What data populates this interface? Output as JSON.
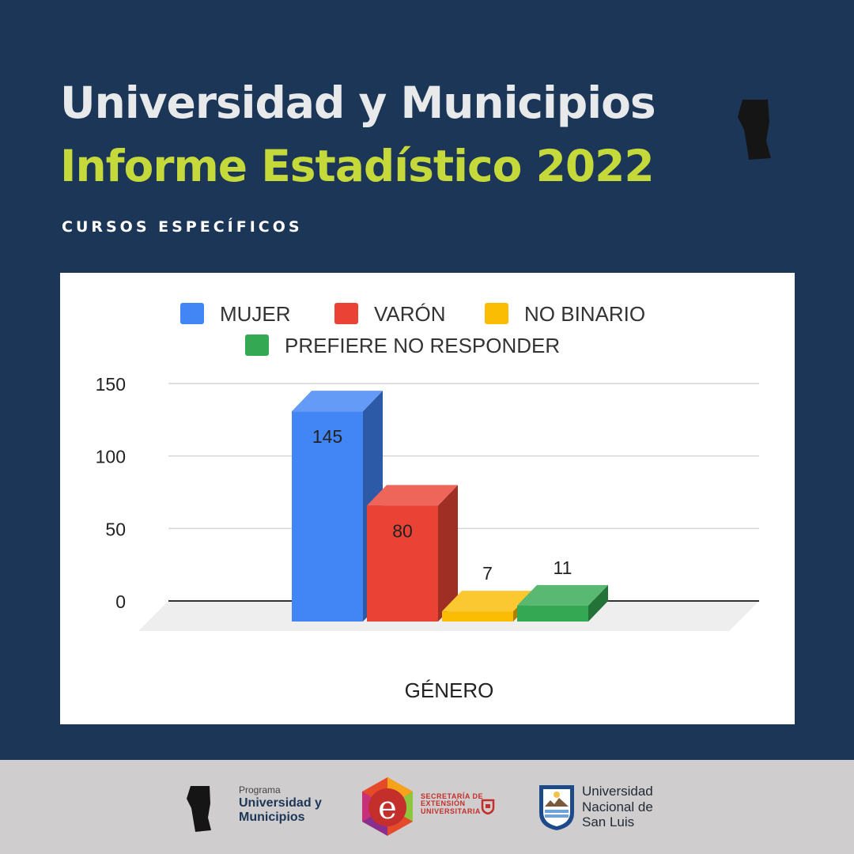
{
  "header": {
    "title": "Universidad y Municipios",
    "subtitle": "Informe Estadístico 2022",
    "section": "CURSOS ESPECÍFICOS"
  },
  "colors": {
    "background": "#1c3657",
    "title": "#e8e9ea",
    "accent": "#c5d93a",
    "footer": "#d0cdce"
  },
  "chart_data": {
    "type": "bar",
    "style": "3d",
    "xlabel": "GÉNERO",
    "ylabel": "",
    "ylim": [
      0,
      150
    ],
    "yticks": [
      0,
      50,
      100,
      150
    ],
    "grid": true,
    "legend_position": "top",
    "series": [
      {
        "name": "MUJER",
        "value": 145,
        "color": "#4285f4"
      },
      {
        "name": "VARÓN",
        "value": 80,
        "color": "#ea4335"
      },
      {
        "name": "NO BINARIO",
        "value": 7,
        "color": "#fbbc04"
      },
      {
        "name": "PREFIERE NO RESPONDER",
        "value": 11,
        "color": "#34a853"
      }
    ]
  },
  "footer": {
    "logos": [
      {
        "name": "programa-logo",
        "lines": [
          "Programa",
          "Universidad y",
          "Municipios"
        ]
      },
      {
        "name": "extension-logo",
        "lines": [
          "SECRETARÍA DE",
          "EXTENSIÓN",
          "UNIVERSITARIA"
        ]
      },
      {
        "name": "unsl-logo",
        "lines": [
          "Universidad",
          "Nacional de",
          "San Luis"
        ]
      }
    ]
  }
}
